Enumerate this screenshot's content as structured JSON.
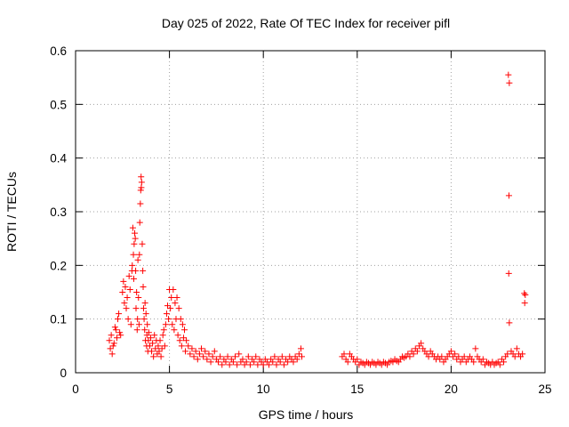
{
  "chart_data": {
    "type": "scatter",
    "title": "Day 025 of 2022, Rate Of TEC Index for receiver pifl",
    "xlabel": "GPS time / hours",
    "ylabel": "ROTI / TECUs",
    "xlim": [
      0,
      25
    ],
    "ylim": [
      0,
      0.6
    ],
    "xticks": [
      0,
      5,
      10,
      15,
      20,
      25
    ],
    "yticks": [
      0,
      0.1,
      0.2,
      0.3,
      0.4,
      0.5,
      0.6
    ],
    "xtick_labels": [
      "0",
      "5",
      "10",
      "15",
      "20",
      "25"
    ],
    "ytick_labels": [
      "0",
      "0.1",
      "0.2",
      "0.3",
      "0.4",
      "0.5",
      "0.6"
    ],
    "grid": true,
    "marker": "+",
    "series": [
      {
        "name": "ROTI",
        "color": "#ff0000",
        "points": [
          [
            1.8,
            0.06
          ],
          [
            1.85,
            0.045
          ],
          [
            1.9,
            0.07
          ],
          [
            1.95,
            0.035
          ],
          [
            2.0,
            0.05
          ],
          [
            2.05,
            0.055
          ],
          [
            2.1,
            0.085
          ],
          [
            2.15,
            0.08
          ],
          [
            2.2,
            0.065
          ],
          [
            2.25,
            0.1
          ],
          [
            2.3,
            0.11
          ],
          [
            2.35,
            0.075
          ],
          [
            2.4,
            0.07
          ],
          [
            2.5,
            0.15
          ],
          [
            2.55,
            0.17
          ],
          [
            2.6,
            0.13
          ],
          [
            2.65,
            0.16
          ],
          [
            2.7,
            0.12
          ],
          [
            2.75,
            0.14
          ],
          [
            2.8,
            0.1
          ],
          [
            2.85,
            0.18
          ],
          [
            2.9,
            0.155
          ],
          [
            2.95,
            0.09
          ],
          [
            3.0,
            0.19
          ],
          [
            3.02,
            0.2
          ],
          [
            3.05,
            0.27
          ],
          [
            3.08,
            0.22
          ],
          [
            3.1,
            0.175
          ],
          [
            3.12,
            0.24
          ],
          [
            3.15,
            0.26
          ],
          [
            3.18,
            0.25
          ],
          [
            3.2,
            0.19
          ],
          [
            3.22,
            0.12
          ],
          [
            3.25,
            0.15
          ],
          [
            3.28,
            0.08
          ],
          [
            3.3,
            0.1
          ],
          [
            3.32,
            0.21
          ],
          [
            3.35,
            0.14
          ],
          [
            3.38,
            0.09
          ],
          [
            3.4,
            0.22
          ],
          [
            3.42,
            0.28
          ],
          [
            3.45,
            0.315
          ],
          [
            3.47,
            0.34
          ],
          [
            3.49,
            0.365
          ],
          [
            3.5,
            0.345
          ],
          [
            3.52,
            0.355
          ],
          [
            3.55,
            0.24
          ],
          [
            3.58,
            0.19
          ],
          [
            3.6,
            0.16
          ],
          [
            3.62,
            0.12
          ],
          [
            3.65,
            0.1
          ],
          [
            3.68,
            0.08
          ],
          [
            3.7,
            0.13
          ],
          [
            3.72,
            0.06
          ],
          [
            3.75,
            0.11
          ],
          [
            3.78,
            0.05
          ],
          [
            3.8,
            0.07
          ],
          [
            3.82,
            0.09
          ],
          [
            3.85,
            0.04
          ],
          [
            3.88,
            0.06
          ],
          [
            3.9,
            0.075
          ],
          [
            3.95,
            0.05
          ],
          [
            4.0,
            0.065
          ],
          [
            4.05,
            0.04
          ],
          [
            4.1,
            0.055
          ],
          [
            4.15,
            0.03
          ],
          [
            4.2,
            0.07
          ],
          [
            4.25,
            0.045
          ],
          [
            4.3,
            0.06
          ],
          [
            4.35,
            0.035
          ],
          [
            4.4,
            0.05
          ],
          [
            4.45,
            0.04
          ],
          [
            4.5,
            0.06
          ],
          [
            4.55,
            0.03
          ],
          [
            4.6,
            0.045
          ],
          [
            4.65,
            0.07
          ],
          [
            4.7,
            0.08
          ],
          [
            4.75,
            0.05
          ],
          [
            4.8,
            0.09
          ],
          [
            4.85,
            0.11
          ],
          [
            4.9,
            0.125
          ],
          [
            4.95,
            0.1
          ],
          [
            5.0,
            0.155
          ],
          [
            5.05,
            0.12
          ],
          [
            5.1,
            0.14
          ],
          [
            5.15,
            0.09
          ],
          [
            5.2,
            0.155
          ],
          [
            5.25,
            0.08
          ],
          [
            5.3,
            0.13
          ],
          [
            5.35,
            0.1
          ],
          [
            5.4,
            0.14
          ],
          [
            5.45,
            0.07
          ],
          [
            5.5,
            0.12
          ],
          [
            5.55,
            0.06
          ],
          [
            5.6,
            0.1
          ],
          [
            5.65,
            0.05
          ],
          [
            5.7,
            0.09
          ],
          [
            5.75,
            0.065
          ],
          [
            5.8,
            0.08
          ],
          [
            5.85,
            0.04
          ],
          [
            5.9,
            0.06
          ],
          [
            6.0,
            0.05
          ],
          [
            6.1,
            0.035
          ],
          [
            6.2,
            0.045
          ],
          [
            6.3,
            0.03
          ],
          [
            6.4,
            0.04
          ],
          [
            6.5,
            0.025
          ],
          [
            6.6,
            0.035
          ],
          [
            6.7,
            0.045
          ],
          [
            6.8,
            0.03
          ],
          [
            6.9,
            0.04
          ],
          [
            7.0,
            0.025
          ],
          [
            7.1,
            0.035
          ],
          [
            7.2,
            0.02
          ],
          [
            7.3,
            0.03
          ],
          [
            7.4,
            0.04
          ],
          [
            7.5,
            0.025
          ],
          [
            7.6,
            0.02
          ],
          [
            7.7,
            0.03
          ],
          [
            7.8,
            0.015
          ],
          [
            7.9,
            0.025
          ],
          [
            8.0,
            0.02
          ],
          [
            8.1,
            0.03
          ],
          [
            8.2,
            0.015
          ],
          [
            8.3,
            0.025
          ],
          [
            8.4,
            0.02
          ],
          [
            8.5,
            0.03
          ],
          [
            8.6,
            0.015
          ],
          [
            8.7,
            0.035
          ],
          [
            8.8,
            0.02
          ],
          [
            8.9,
            0.025
          ],
          [
            9.0,
            0.015
          ],
          [
            9.1,
            0.02
          ],
          [
            9.2,
            0.03
          ],
          [
            9.3,
            0.015
          ],
          [
            9.4,
            0.025
          ],
          [
            9.5,
            0.02
          ],
          [
            9.6,
            0.03
          ],
          [
            9.7,
            0.015
          ],
          [
            9.8,
            0.025
          ],
          [
            9.9,
            0.02
          ],
          [
            10.0,
            0.015
          ],
          [
            10.1,
            0.025
          ],
          [
            10.2,
            0.02
          ],
          [
            10.3,
            0.015
          ],
          [
            10.4,
            0.025
          ],
          [
            10.5,
            0.02
          ],
          [
            10.6,
            0.03
          ],
          [
            10.7,
            0.015
          ],
          [
            10.8,
            0.025
          ],
          [
            10.9,
            0.02
          ],
          [
            11.0,
            0.03
          ],
          [
            11.1,
            0.015
          ],
          [
            11.2,
            0.025
          ],
          [
            11.3,
            0.02
          ],
          [
            11.4,
            0.03
          ],
          [
            11.5,
            0.025
          ],
          [
            11.6,
            0.02
          ],
          [
            11.7,
            0.03
          ],
          [
            11.8,
            0.025
          ],
          [
            11.9,
            0.035
          ],
          [
            12.0,
            0.045
          ],
          [
            12.05,
            0.03
          ],
          [
            14.2,
            0.03
          ],
          [
            14.3,
            0.035
          ],
          [
            14.4,
            0.025
          ],
          [
            14.5,
            0.02
          ],
          [
            14.6,
            0.035
          ],
          [
            14.7,
            0.03
          ],
          [
            14.8,
            0.025
          ],
          [
            14.9,
            0.02
          ],
          [
            15.0,
            0.025
          ],
          [
            15.1,
            0.015
          ],
          [
            15.2,
            0.02
          ],
          [
            15.3,
            0.018
          ],
          [
            15.4,
            0.015
          ],
          [
            15.5,
            0.02
          ],
          [
            15.6,
            0.018
          ],
          [
            15.7,
            0.015
          ],
          [
            15.8,
            0.02
          ],
          [
            15.9,
            0.018
          ],
          [
            16.0,
            0.015
          ],
          [
            16.1,
            0.02
          ],
          [
            16.2,
            0.018
          ],
          [
            16.3,
            0.015
          ],
          [
            16.4,
            0.02
          ],
          [
            16.5,
            0.018
          ],
          [
            16.6,
            0.015
          ],
          [
            16.7,
            0.02
          ],
          [
            16.8,
            0.022
          ],
          [
            16.9,
            0.02
          ],
          [
            17.0,
            0.025
          ],
          [
            17.1,
            0.022
          ],
          [
            17.2,
            0.02
          ],
          [
            17.3,
            0.025
          ],
          [
            17.4,
            0.03
          ],
          [
            17.5,
            0.028
          ],
          [
            17.6,
            0.03
          ],
          [
            17.7,
            0.035
          ],
          [
            17.8,
            0.03
          ],
          [
            17.9,
            0.04
          ],
          [
            18.0,
            0.035
          ],
          [
            18.1,
            0.045
          ],
          [
            18.2,
            0.04
          ],
          [
            18.3,
            0.05
          ],
          [
            18.4,
            0.055
          ],
          [
            18.5,
            0.045
          ],
          [
            18.6,
            0.04
          ],
          [
            18.7,
            0.035
          ],
          [
            18.8,
            0.03
          ],
          [
            18.9,
            0.04
          ],
          [
            19.0,
            0.035
          ],
          [
            19.1,
            0.03
          ],
          [
            19.2,
            0.025
          ],
          [
            19.3,
            0.03
          ],
          [
            19.4,
            0.025
          ],
          [
            19.5,
            0.03
          ],
          [
            19.6,
            0.02
          ],
          [
            19.7,
            0.025
          ],
          [
            19.8,
            0.03
          ],
          [
            19.9,
            0.035
          ],
          [
            20.0,
            0.04
          ],
          [
            20.1,
            0.03
          ],
          [
            20.2,
            0.035
          ],
          [
            20.3,
            0.025
          ],
          [
            20.4,
            0.03
          ],
          [
            20.5,
            0.02
          ],
          [
            20.6,
            0.025
          ],
          [
            20.7,
            0.03
          ],
          [
            20.8,
            0.02
          ],
          [
            20.9,
            0.025
          ],
          [
            21.0,
            0.03
          ],
          [
            21.1,
            0.025
          ],
          [
            21.2,
            0.02
          ],
          [
            21.3,
            0.045
          ],
          [
            21.4,
            0.03
          ],
          [
            21.5,
            0.025
          ],
          [
            21.6,
            0.02
          ],
          [
            21.7,
            0.025
          ],
          [
            21.8,
            0.015
          ],
          [
            21.9,
            0.02
          ],
          [
            22.0,
            0.018
          ],
          [
            22.1,
            0.015
          ],
          [
            22.2,
            0.02
          ],
          [
            22.3,
            0.015
          ],
          [
            22.4,
            0.018
          ],
          [
            22.5,
            0.02
          ],
          [
            22.6,
            0.015
          ],
          [
            22.7,
            0.025
          ],
          [
            22.8,
            0.02
          ],
          [
            22.9,
            0.03
          ],
          [
            23.0,
            0.035
          ],
          [
            23.05,
            0.555
          ],
          [
            23.1,
            0.54
          ],
          [
            23.08,
            0.33
          ],
          [
            23.07,
            0.185
          ],
          [
            23.1,
            0.093
          ],
          [
            23.2,
            0.04
          ],
          [
            23.3,
            0.035
          ],
          [
            23.4,
            0.03
          ],
          [
            23.5,
            0.045
          ],
          [
            23.6,
            0.035
          ],
          [
            23.7,
            0.03
          ],
          [
            23.8,
            0.035
          ],
          [
            23.9,
            0.148
          ],
          [
            23.92,
            0.13
          ],
          [
            23.95,
            0.145
          ]
        ]
      }
    ]
  }
}
